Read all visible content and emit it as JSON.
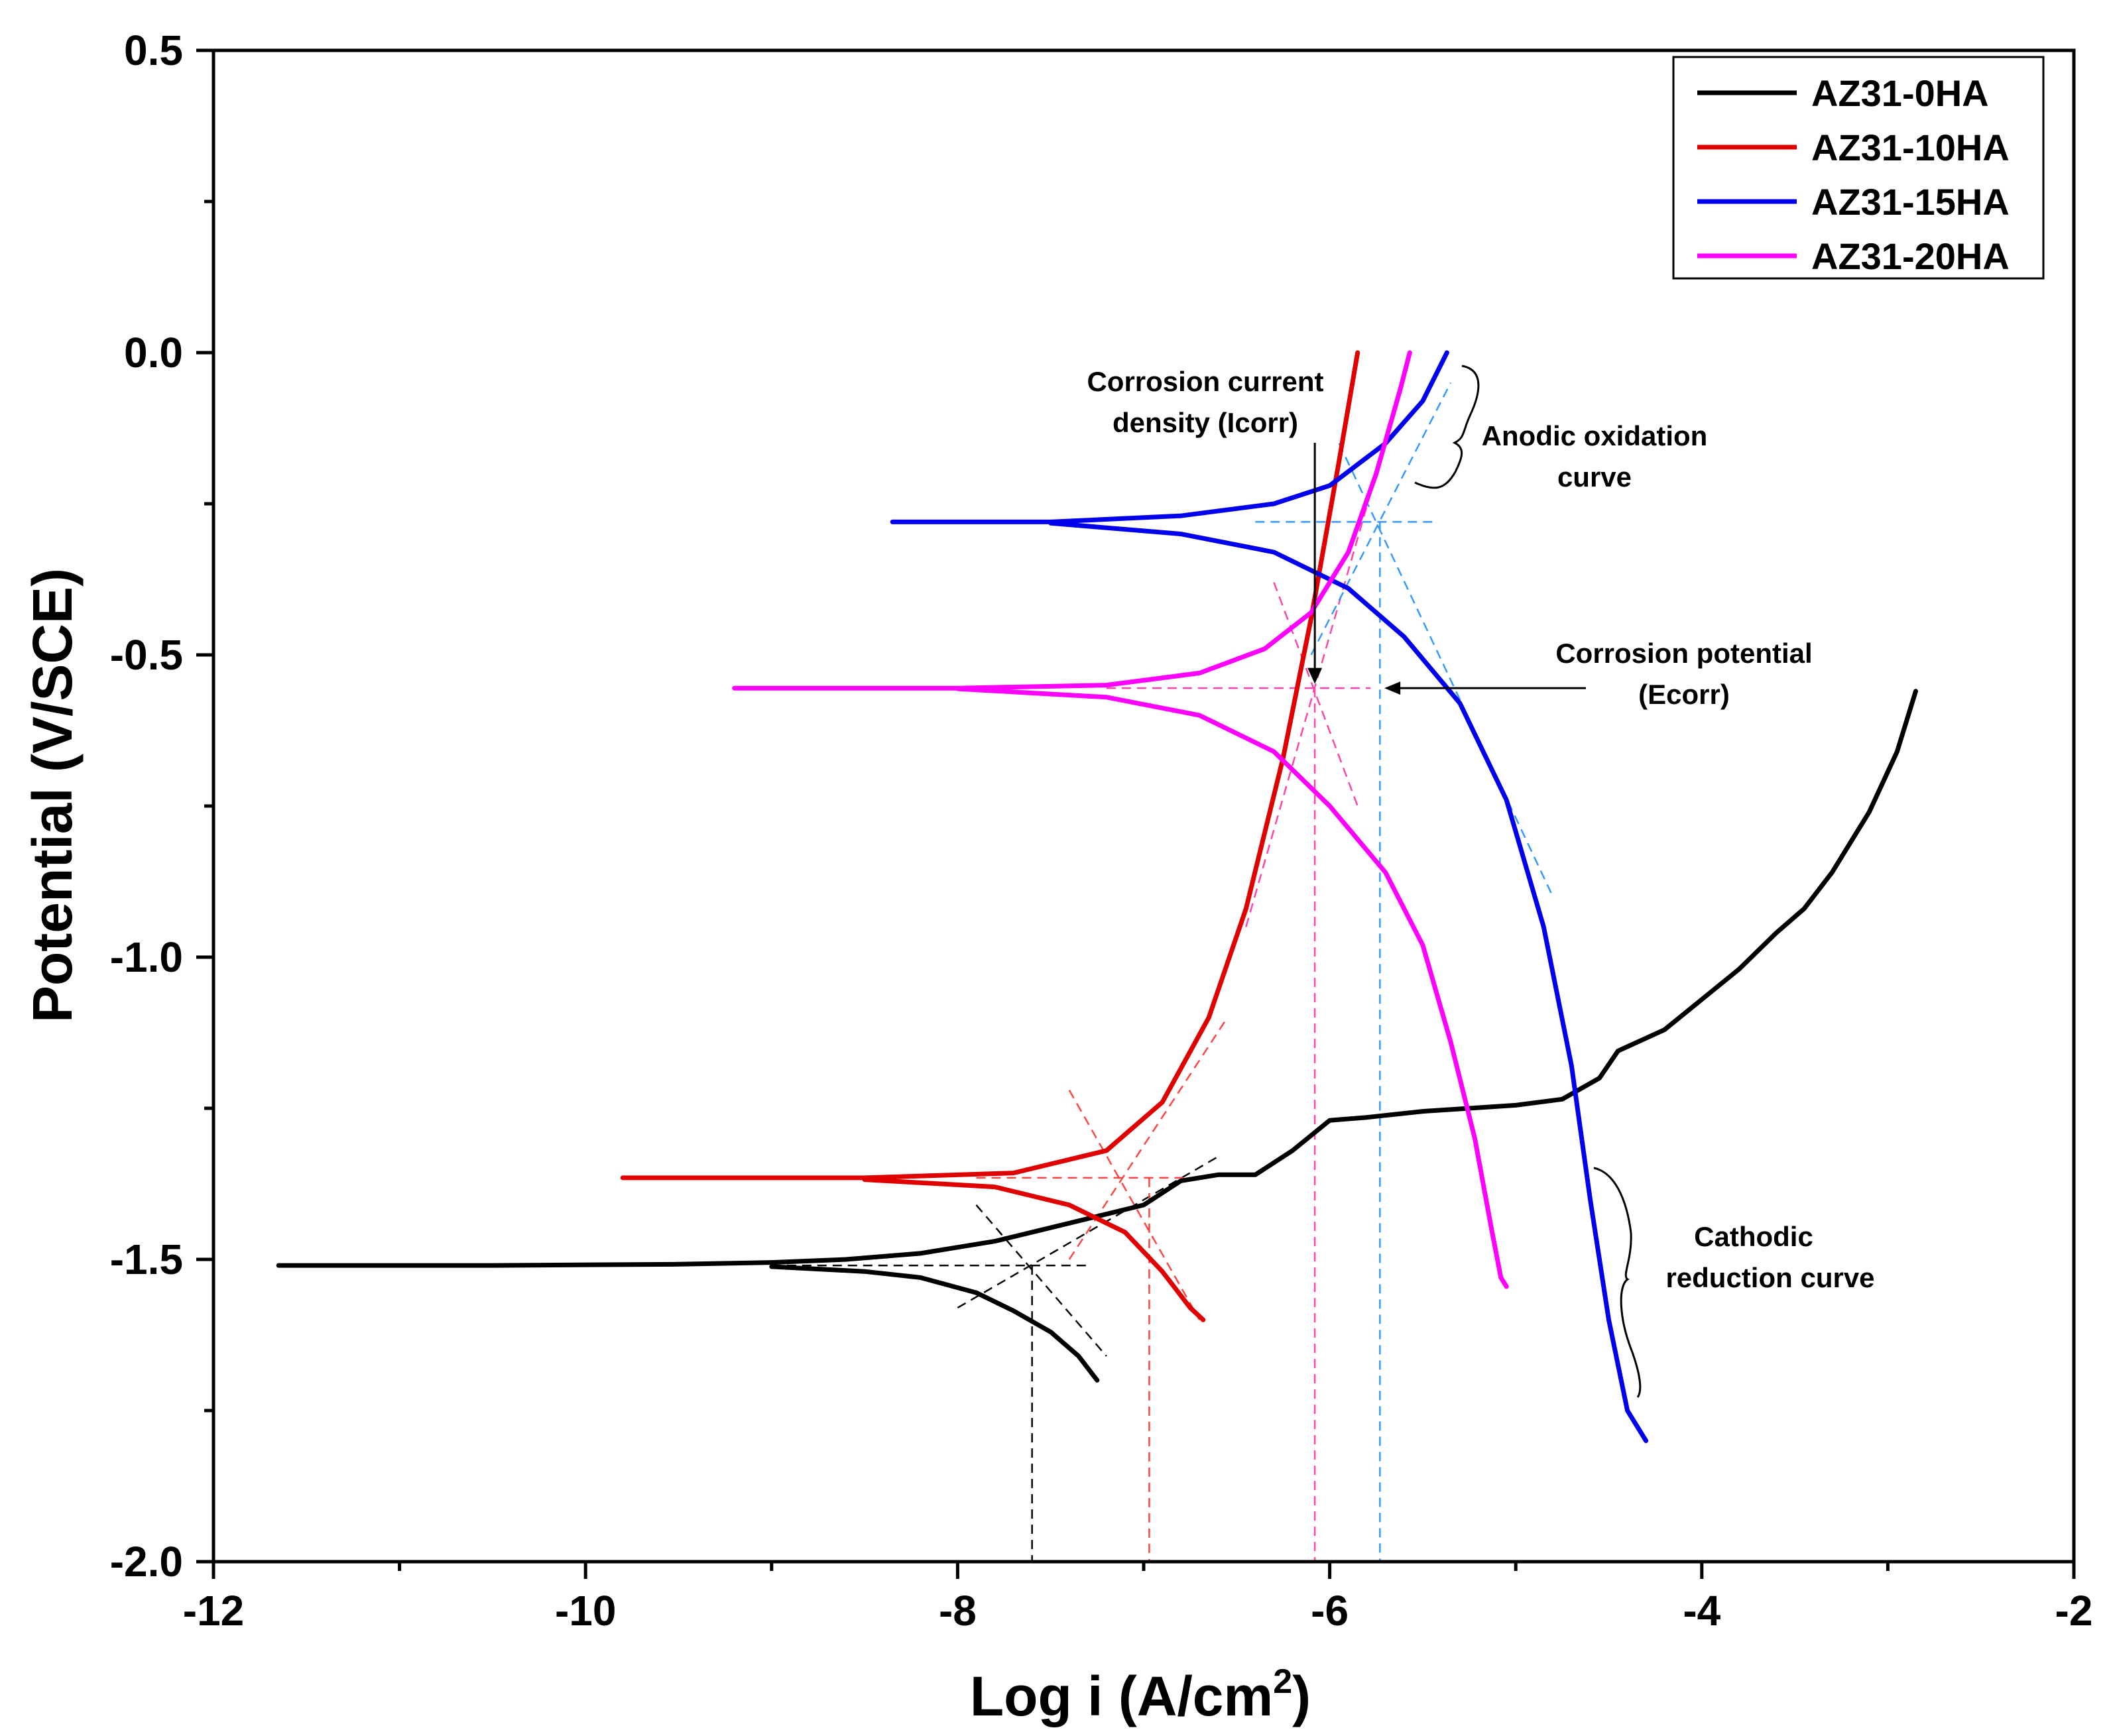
{
  "chart_data": {
    "type": "line",
    "title": "",
    "xlabel": "Log i (A/cm",
    "xlabel_sup": "2",
    "xlabel_close": ")",
    "ylabel": "Potential (V/SCE)",
    "xlim": [
      -12,
      -2
    ],
    "ylim": [
      -2.0,
      0.5
    ],
    "xticks": [
      -12,
      -10,
      -8,
      -6,
      -4,
      -2
    ],
    "xtick_labels": [
      "-12",
      "-10",
      "-8",
      "-6",
      "-4",
      "-2"
    ],
    "yticks": [
      -2.0,
      -1.5,
      -1.0,
      -0.5,
      0.0,
      0.5
    ],
    "ytick_labels": [
      "-2.0",
      "-1.5",
      "-1.0",
      "-0.5",
      "0.0",
      "0.5"
    ],
    "legend_position": "top-right",
    "series": [
      {
        "name": "AZ31-0HA",
        "color": "#000000",
        "points": [
          [
            -11.65,
            -1.51
          ],
          [
            -10.5,
            -1.51
          ],
          [
            -9.5,
            -1.508
          ],
          [
            -9.0,
            -1.505
          ],
          [
            -8.6,
            -1.5
          ],
          [
            -8.2,
            -1.49
          ],
          [
            -7.8,
            -1.47
          ],
          [
            -7.4,
            -1.44
          ],
          [
            -7.0,
            -1.41
          ],
          [
            -6.8,
            -1.37
          ],
          [
            -6.6,
            -1.36
          ],
          [
            -6.4,
            -1.36
          ],
          [
            -6.2,
            -1.32
          ],
          [
            -6.0,
            -1.27
          ],
          [
            -5.8,
            -1.265
          ],
          [
            -5.5,
            -1.255
          ],
          [
            -5.0,
            -1.245
          ],
          [
            -4.75,
            -1.235
          ],
          [
            -4.55,
            -1.2
          ],
          [
            -4.45,
            -1.155
          ],
          [
            -4.2,
            -1.12
          ],
          [
            -4.0,
            -1.07
          ],
          [
            -3.8,
            -1.02
          ],
          [
            -3.6,
            -0.96
          ],
          [
            -3.45,
            -0.92
          ],
          [
            -3.3,
            -0.86
          ],
          [
            -3.1,
            -0.76
          ],
          [
            -2.95,
            -0.66
          ],
          [
            -2.85,
            -0.56
          ]
        ],
        "points_cathodic": [
          [
            -9.0,
            -1.512
          ],
          [
            -8.5,
            -1.52
          ],
          [
            -8.2,
            -1.53
          ],
          [
            -7.9,
            -1.555
          ],
          [
            -7.7,
            -1.585
          ],
          [
            -7.5,
            -1.62
          ],
          [
            -7.35,
            -1.66
          ],
          [
            -7.25,
            -1.7
          ]
        ]
      },
      {
        "name": "AZ31-10HA",
        "color": "#e00000",
        "points": [
          [
            -9.8,
            -1.365
          ],
          [
            -8.5,
            -1.365
          ],
          [
            -7.7,
            -1.357
          ],
          [
            -7.2,
            -1.32
          ],
          [
            -6.9,
            -1.24
          ],
          [
            -6.65,
            -1.1
          ],
          [
            -6.45,
            -0.92
          ],
          [
            -6.25,
            -0.67
          ],
          [
            -6.1,
            -0.44
          ],
          [
            -5.95,
            -0.18
          ],
          [
            -5.85,
            0.0
          ]
        ],
        "points_cathodic": [
          [
            -8.5,
            -1.368
          ],
          [
            -7.8,
            -1.38
          ],
          [
            -7.4,
            -1.41
          ],
          [
            -7.1,
            -1.455
          ],
          [
            -6.9,
            -1.52
          ],
          [
            -6.75,
            -1.58
          ],
          [
            -6.68,
            -1.6
          ]
        ]
      },
      {
        "name": "AZ31-15HA",
        "color": "#0000ee",
        "points": [
          [
            -8.35,
            -0.28
          ],
          [
            -7.5,
            -0.28
          ],
          [
            -6.8,
            -0.27
          ],
          [
            -6.3,
            -0.25
          ],
          [
            -6.0,
            -0.22
          ],
          [
            -5.7,
            -0.15
          ],
          [
            -5.5,
            -0.08
          ],
          [
            -5.37,
            0.0
          ]
        ],
        "points_cathodic": [
          [
            -7.5,
            -0.282
          ],
          [
            -6.8,
            -0.3
          ],
          [
            -6.3,
            -0.33
          ],
          [
            -5.9,
            -0.39
          ],
          [
            -5.6,
            -0.47
          ],
          [
            -5.3,
            -0.58
          ],
          [
            -5.05,
            -0.74
          ],
          [
            -4.85,
            -0.95
          ],
          [
            -4.7,
            -1.18
          ],
          [
            -4.6,
            -1.4
          ],
          [
            -4.5,
            -1.6
          ],
          [
            -4.4,
            -1.75
          ],
          [
            -4.3,
            -1.8
          ]
        ]
      },
      {
        "name": "AZ31-20HA",
        "color": "#ff00ff",
        "points": [
          [
            -9.2,
            -0.555
          ],
          [
            -8.0,
            -0.555
          ],
          [
            -7.2,
            -0.55
          ],
          [
            -6.7,
            -0.53
          ],
          [
            -6.35,
            -0.49
          ],
          [
            -6.1,
            -0.43
          ],
          [
            -5.9,
            -0.33
          ],
          [
            -5.75,
            -0.2
          ],
          [
            -5.62,
            -0.06
          ],
          [
            -5.57,
            0.0
          ]
        ],
        "points_cathodic": [
          [
            -8.0,
            -0.556
          ],
          [
            -7.2,
            -0.57
          ],
          [
            -6.7,
            -0.6
          ],
          [
            -6.3,
            -0.66
          ],
          [
            -6.0,
            -0.75
          ],
          [
            -5.7,
            -0.86
          ],
          [
            -5.5,
            -0.98
          ],
          [
            -5.35,
            -1.14
          ],
          [
            -5.22,
            -1.3
          ],
          [
            -5.13,
            -1.45
          ],
          [
            -5.08,
            -1.53
          ],
          [
            -5.05,
            -1.545
          ]
        ]
      }
    ],
    "construction_lines": [
      {
        "color": "#000000",
        "icorr": -7.6,
        "ecorr": -1.51,
        "anodic": [
          [
            -8.0,
            -1.58
          ],
          [
            -6.6,
            -1.33
          ]
        ],
        "cathodic": [
          [
            -7.9,
            -1.41
          ],
          [
            -7.2,
            -1.66
          ]
        ]
      },
      {
        "color": "#ff4444",
        "icorr": -6.97,
        "ecorr": -1.365,
        "anodic": [
          [
            -7.4,
            -1.5
          ],
          [
            -6.55,
            -1.1
          ]
        ],
        "cathodic": [
          [
            -7.4,
            -1.22
          ],
          [
            -6.7,
            -1.6
          ]
        ]
      },
      {
        "color": "#ff44aa",
        "icorr": -6.08,
        "ecorr": -0.555,
        "anodic": [
          [
            -6.45,
            -0.95
          ],
          [
            -5.75,
            -0.2
          ]
        ],
        "cathodic": [
          [
            -6.3,
            -0.38
          ],
          [
            -5.85,
            -0.75
          ]
        ]
      },
      {
        "color": "#3399ff",
        "icorr": -5.73,
        "ecorr": -0.28,
        "anodic": [
          [
            -6.1,
            -0.5
          ],
          [
            -5.35,
            -0.05
          ]
        ],
        "cathodic": [
          [
            -5.95,
            -0.15
          ],
          [
            -4.8,
            -0.9
          ]
        ]
      }
    ],
    "annotations": {
      "icorr": {
        "lines": [
          "Corrosion current",
          "density (Icorr)"
        ],
        "target": [
          -6.08,
          -0.55
        ]
      },
      "anodic": {
        "lines": [
          "Anodic oxidation",
          "curve"
        ]
      },
      "ecorr": {
        "lines": [
          "Corrosion potential",
          "(Ecorr)"
        ],
        "target": [
          -5.72,
          -0.555
        ]
      },
      "cathodic": {
        "lines": [
          "Cathodic",
          "reduction curve"
        ]
      }
    }
  }
}
